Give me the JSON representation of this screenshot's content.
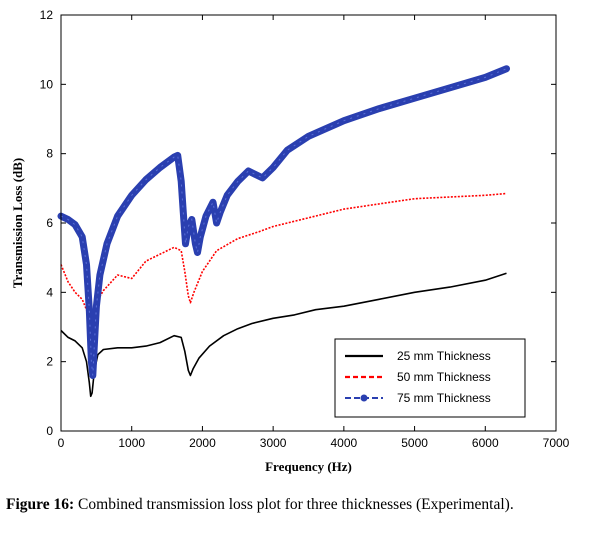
{
  "chart_data": {
    "type": "line",
    "xlabel": "Frequency (Hz)",
    "ylabel": "Transmission Loss (dB)",
    "xlim": [
      0,
      7000
    ],
    "ylim": [
      0,
      12
    ],
    "xticks": [
      0,
      1000,
      2000,
      3000,
      4000,
      5000,
      6000,
      7000
    ],
    "yticks": [
      0,
      2,
      4,
      6,
      8,
      10,
      12
    ],
    "grid": false,
    "legend_position": "lower-right",
    "series": [
      {
        "name": "25 mm Thickness",
        "color": "#000000",
        "style": "solid",
        "points": [
          [
            0,
            2.9
          ],
          [
            100,
            2.7
          ],
          [
            200,
            2.6
          ],
          [
            300,
            2.4
          ],
          [
            360,
            2.0
          ],
          [
            400,
            1.4
          ],
          [
            420,
            1.0
          ],
          [
            440,
            1.1
          ],
          [
            470,
            1.7
          ],
          [
            520,
            2.2
          ],
          [
            600,
            2.35
          ],
          [
            800,
            2.4
          ],
          [
            1000,
            2.4
          ],
          [
            1200,
            2.45
          ],
          [
            1400,
            2.55
          ],
          [
            1600,
            2.75
          ],
          [
            1700,
            2.7
          ],
          [
            1750,
            2.3
          ],
          [
            1800,
            1.75
          ],
          [
            1830,
            1.6
          ],
          [
            1870,
            1.8
          ],
          [
            1950,
            2.1
          ],
          [
            2100,
            2.45
          ],
          [
            2300,
            2.75
          ],
          [
            2500,
            2.95
          ],
          [
            2700,
            3.1
          ],
          [
            3000,
            3.25
          ],
          [
            3300,
            3.35
          ],
          [
            3600,
            3.5
          ],
          [
            4000,
            3.6
          ],
          [
            4500,
            3.8
          ],
          [
            5000,
            4.0
          ],
          [
            5500,
            4.15
          ],
          [
            6000,
            4.35
          ],
          [
            6300,
            4.55
          ]
        ]
      },
      {
        "name": "50 mm Thickness",
        "color": "#ff0000",
        "style": "dashed",
        "points": [
          [
            0,
            4.8
          ],
          [
            100,
            4.3
          ],
          [
            200,
            4.0
          ],
          [
            300,
            3.8
          ],
          [
            380,
            3.4
          ],
          [
            420,
            3.1
          ],
          [
            440,
            2.6
          ],
          [
            460,
            3.0
          ],
          [
            500,
            3.7
          ],
          [
            600,
            4.05
          ],
          [
            800,
            4.5
          ],
          [
            1000,
            4.4
          ],
          [
            1200,
            4.9
          ],
          [
            1400,
            5.1
          ],
          [
            1600,
            5.3
          ],
          [
            1700,
            5.2
          ],
          [
            1750,
            4.6
          ],
          [
            1800,
            3.9
          ],
          [
            1830,
            3.7
          ],
          [
            1880,
            4.0
          ],
          [
            2000,
            4.6
          ],
          [
            2200,
            5.2
          ],
          [
            2500,
            5.55
          ],
          [
            2800,
            5.75
          ],
          [
            3000,
            5.9
          ],
          [
            3500,
            6.15
          ],
          [
            4000,
            6.4
          ],
          [
            4500,
            6.55
          ],
          [
            5000,
            6.7
          ],
          [
            5500,
            6.75
          ],
          [
            6000,
            6.8
          ],
          [
            6300,
            6.85
          ]
        ]
      },
      {
        "name": "75 mm Thickness",
        "color": "#2a3fb0",
        "style": "dash-dot-marker",
        "points": [
          [
            0,
            6.2
          ],
          [
            100,
            6.1
          ],
          [
            200,
            5.95
          ],
          [
            300,
            5.6
          ],
          [
            360,
            4.8
          ],
          [
            400,
            3.5
          ],
          [
            430,
            2.0
          ],
          [
            450,
            1.6
          ],
          [
            470,
            2.4
          ],
          [
            500,
            3.6
          ],
          [
            550,
            4.5
          ],
          [
            650,
            5.4
          ],
          [
            800,
            6.2
          ],
          [
            1000,
            6.8
          ],
          [
            1200,
            7.25
          ],
          [
            1400,
            7.6
          ],
          [
            1600,
            7.9
          ],
          [
            1650,
            7.95
          ],
          [
            1700,
            7.2
          ],
          [
            1730,
            6.3
          ],
          [
            1760,
            5.4
          ],
          [
            1800,
            5.9
          ],
          [
            1850,
            6.1
          ],
          [
            1900,
            5.4
          ],
          [
            1930,
            5.15
          ],
          [
            1970,
            5.6
          ],
          [
            2050,
            6.2
          ],
          [
            2150,
            6.6
          ],
          [
            2200,
            6.0
          ],
          [
            2250,
            6.3
          ],
          [
            2350,
            6.8
          ],
          [
            2500,
            7.2
          ],
          [
            2650,
            7.5
          ],
          [
            2750,
            7.4
          ],
          [
            2850,
            7.3
          ],
          [
            3000,
            7.6
          ],
          [
            3200,
            8.1
          ],
          [
            3500,
            8.5
          ],
          [
            4000,
            8.95
          ],
          [
            4500,
            9.3
          ],
          [
            5000,
            9.6
          ],
          [
            5500,
            9.9
          ],
          [
            6000,
            10.2
          ],
          [
            6300,
            10.45
          ]
        ]
      }
    ]
  },
  "caption": {
    "label": "Figure 16:",
    "text": "Combined transmission loss plot for three thicknesses (Experimental)."
  }
}
